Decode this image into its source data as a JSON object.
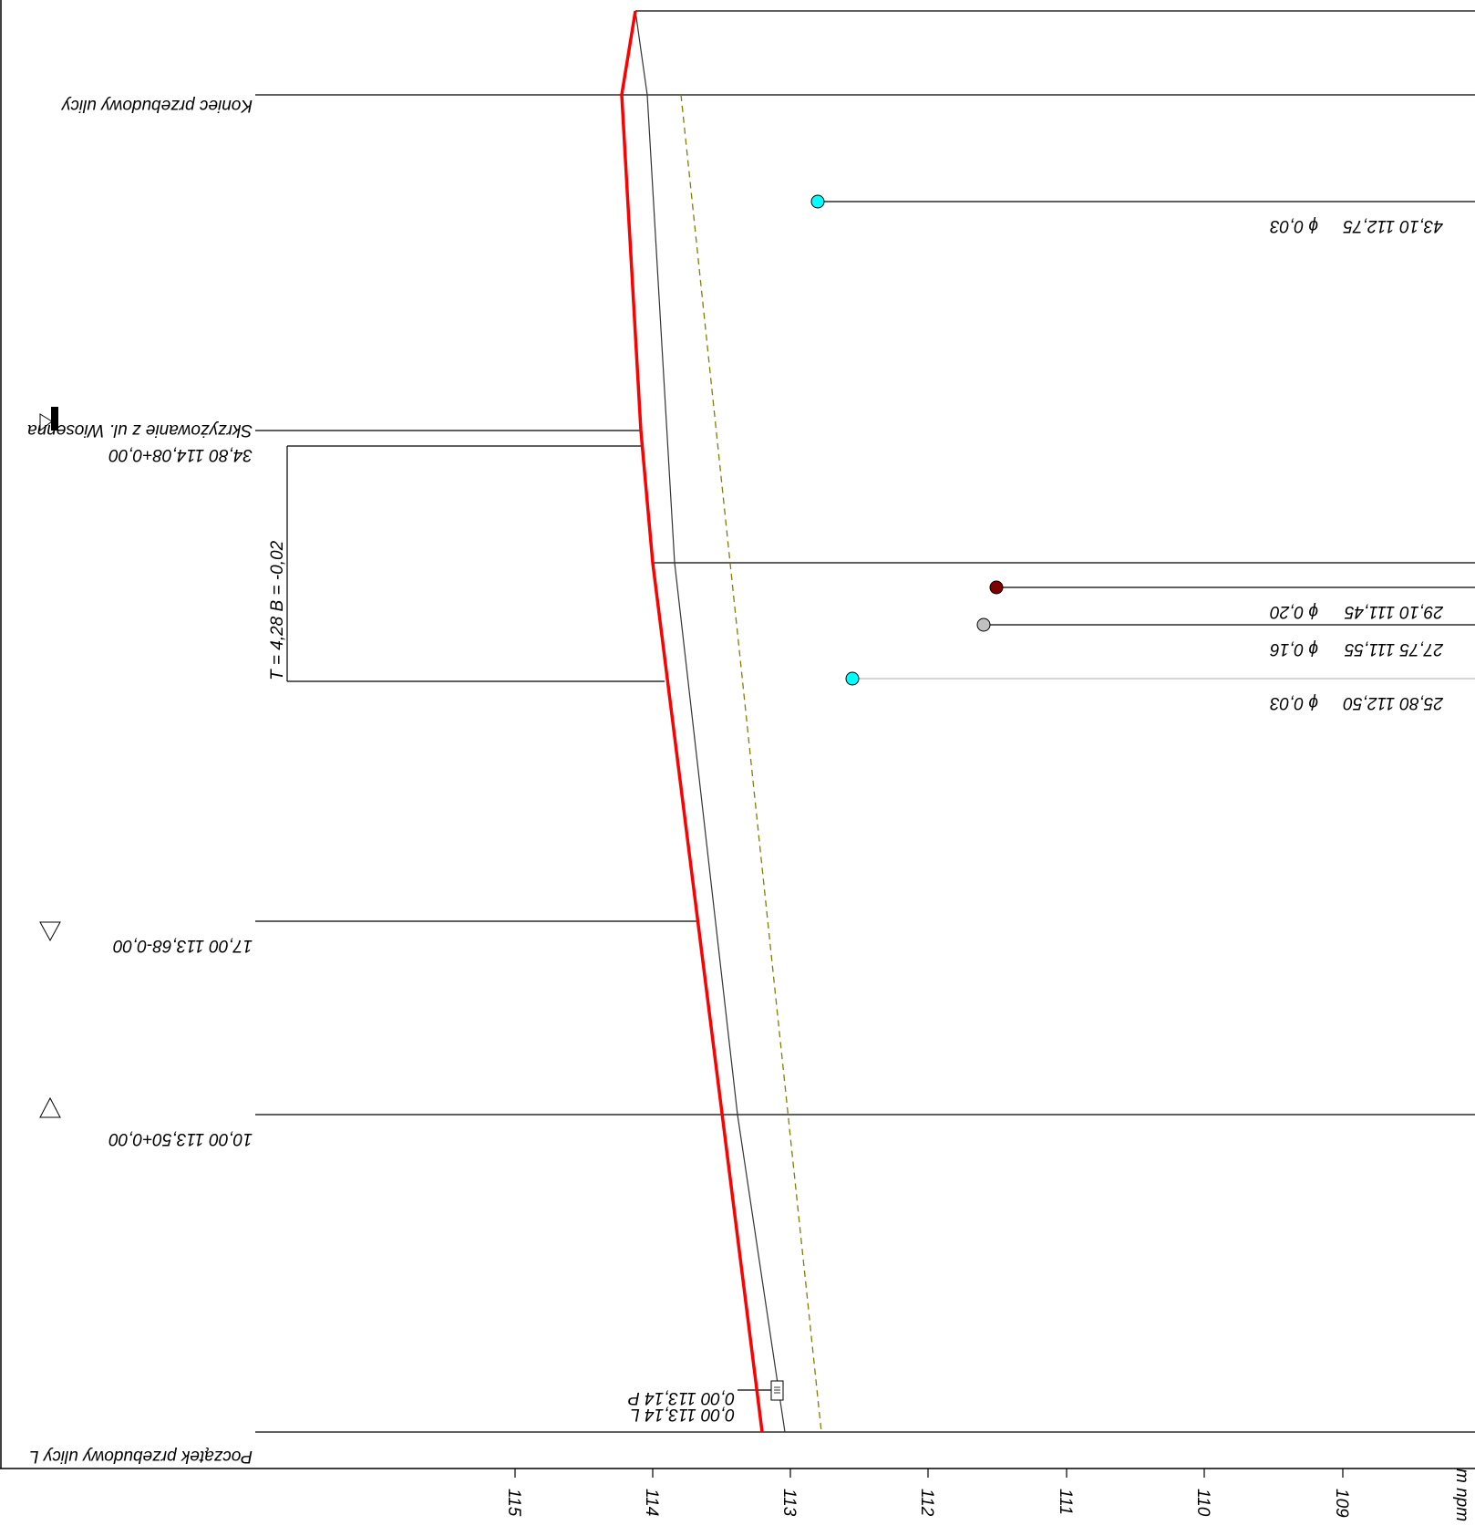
{
  "axis": {
    "unit_label": "m npm",
    "ticks": [
      "115",
      "114",
      "113",
      "112",
      "111",
      "110",
      "109"
    ]
  },
  "stations": {
    "start": "Początek przebudowy ulicy L",
    "end": "Koniec przebudowy  ulicy",
    "junction": "Skrzyżowanie z ul. Wiosenna",
    "junction_value": "34,80 114,08+0,00",
    "low_point": "17,00 113,68-0,00",
    "high_point": "10,00 113,50+0,00"
  },
  "curve": {
    "label": "T = 4,28  B = -0,02"
  },
  "inlet": {
    "left": "0,00 113,14 L",
    "right": "0,00 113,14 P"
  },
  "utilities": [
    {
      "label": "43,10 112,75",
      "diameter": "ϕ 0,03",
      "color": "#00ffff"
    },
    {
      "label": "29,10 111,45",
      "diameter": "ϕ 0,20",
      "color": "#800000"
    },
    {
      "label": "27,75 111,55",
      "diameter": "ϕ 0,16",
      "color": "#c0c0c0"
    },
    {
      "label": "25,80 112,50",
      "diameter": "ϕ 0,03",
      "color": "#00ffff"
    }
  ],
  "colors": {
    "design_line": "#ff0000",
    "terrain_line": "#333333",
    "dashed_line": "#808000"
  }
}
